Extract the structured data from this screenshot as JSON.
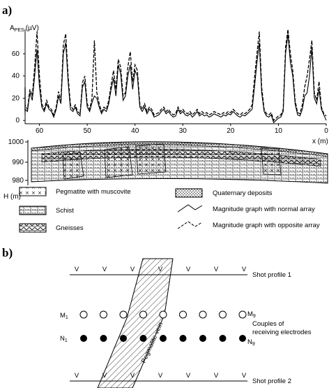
{
  "panel_a_label": "a)",
  "panel_b_label": "b)",
  "chart_data": {
    "type": "line",
    "ylabel_prefix": "A",
    "ylabel_sub": "PES",
    "ylabel_unit": "(µV)",
    "xlabel": "x (m)",
    "xlim": [
      63,
      0
    ],
    "ylim": [
      -3,
      82
    ],
    "y_ticks": [
      0,
      20,
      40,
      60
    ],
    "x_ticks": [
      60,
      50,
      40,
      30,
      20,
      10,
      0
    ],
    "series": [
      {
        "name": "Magnitude graph with normal array",
        "x": [
          65,
          64.5,
          64,
          63.5,
          63,
          62.5,
          62,
          61.5,
          61,
          60.5,
          60,
          59.5,
          59,
          58.5,
          58,
          57.5,
          57,
          56.5,
          56,
          55.5,
          55,
          54.5,
          54,
          53.5,
          53,
          52.5,
          52,
          51.5,
          51,
          50.5,
          50,
          49.5,
          49,
          48.5,
          48,
          47.5,
          47,
          46.5,
          46,
          45.5,
          45,
          44.5,
          44,
          43.5,
          43,
          42.5,
          42,
          41.5,
          41,
          40.5,
          40,
          39.5,
          39,
          38.5,
          38,
          37.5,
          37,
          36.5,
          36,
          35.5,
          35,
          34.5,
          34,
          33.5,
          33,
          32.5,
          32,
          31.5,
          31,
          30.5,
          30,
          29.5,
          29,
          28.5,
          28,
          27.5,
          27,
          26.5,
          26,
          25.5,
          25,
          24.5,
          24,
          23.5,
          23,
          22.5,
          22,
          21.5,
          21,
          20.5,
          20,
          19.5,
          19,
          18.5,
          18,
          17.5,
          17,
          16.5,
          16,
          15.5,
          15,
          14.5,
          14,
          13.5,
          13,
          12.5,
          12,
          11.5,
          11,
          10.5,
          10,
          9.5,
          9,
          8.5,
          8,
          7.5,
          7,
          6.5,
          6,
          5.5,
          5,
          4.5,
          4,
          3.5,
          3,
          2.5,
          2,
          1.5,
          1,
          0.5,
          0
        ],
        "values": [
          5,
          12,
          28,
          6,
          10,
          8,
          25,
          18,
          40,
          64,
          30,
          12,
          8,
          15,
          10,
          8,
          3,
          10,
          22,
          15,
          60,
          70,
          35,
          10,
          8,
          12,
          6,
          4,
          30,
          35,
          12,
          8,
          16,
          22,
          20,
          12,
          6,
          10,
          8,
          15,
          28,
          38,
          22,
          50,
          42,
          18,
          22,
          40,
          50,
          28,
          45,
          40,
          12,
          8,
          12,
          6,
          10,
          8,
          3,
          4,
          5,
          8,
          10,
          6,
          8,
          5,
          3,
          4,
          10,
          6,
          8,
          5,
          4,
          6,
          3,
          5,
          8,
          4,
          6,
          4,
          5,
          3,
          4,
          6,
          5,
          4,
          3,
          5,
          4,
          6,
          5,
          8,
          6,
          4,
          3,
          5,
          4,
          6,
          8,
          10,
          30,
          52,
          70,
          25,
          8,
          4,
          3,
          5,
          -2,
          0,
          2,
          3,
          8,
          60,
          78,
          52,
          40,
          15,
          5,
          4,
          10,
          22,
          25,
          40,
          66,
          20,
          15,
          28,
          10,
          5,
          0
        ]
      },
      {
        "name": "Magnitude graph with opposite array",
        "x": [
          65,
          64.5,
          64,
          63.5,
          63,
          62.5,
          62,
          61.5,
          61,
          60.5,
          60,
          59.5,
          59,
          58.5,
          58,
          57.5,
          57,
          56.5,
          56,
          55.5,
          55,
          54.5,
          54,
          53.5,
          53,
          52.5,
          52,
          51.5,
          51,
          50.5,
          50,
          49.5,
          49,
          48.5,
          48,
          47.5,
          47,
          46.5,
          46,
          45.5,
          45,
          44.5,
          44,
          43.5,
          43,
          42.5,
          42,
          41.5,
          41,
          40.5,
          40,
          39.5,
          39,
          38.5,
          38,
          37.5,
          37,
          36.5,
          36,
          35.5,
          35,
          34.5,
          34,
          33.5,
          33,
          32.5,
          32,
          31.5,
          31,
          30.5,
          30,
          29.5,
          29,
          28.5,
          28,
          27.5,
          27,
          26.5,
          26,
          25.5,
          25,
          24.5,
          24,
          23.5,
          23,
          22.5,
          22,
          21.5,
          21,
          20.5,
          20,
          19.5,
          19,
          18.5,
          18,
          17.5,
          17,
          16.5,
          16,
          15.5,
          15,
          14.5,
          14,
          13.5,
          13,
          12.5,
          12,
          11.5,
          11,
          10.5,
          10,
          9.5,
          9,
          8.5,
          8,
          7.5,
          7,
          6.5,
          6,
          5.5,
          5,
          4.5,
          4,
          3.5,
          3,
          2.5,
          2,
          1.5,
          1,
          0.5,
          0
        ],
        "values": [
          8,
          15,
          30,
          10,
          14,
          10,
          28,
          22,
          48,
          80,
          40,
          15,
          10,
          18,
          12,
          10,
          5,
          12,
          26,
          18,
          68,
          78,
          40,
          14,
          10,
          14,
          8,
          6,
          34,
          40,
          15,
          10,
          20,
          72,
          25,
          15,
          8,
          12,
          10,
          18,
          32,
          45,
          28,
          55,
          48,
          22,
          25,
          48,
          62,
          35,
          50,
          45,
          15,
          10,
          15,
          8,
          12,
          10,
          5,
          6,
          7,
          10,
          12,
          8,
          10,
          7,
          5,
          6,
          12,
          8,
          10,
          7,
          6,
          8,
          5,
          7,
          10,
          6,
          8,
          6,
          7,
          5,
          6,
          8,
          7,
          6,
          5,
          7,
          6,
          8,
          7,
          10,
          8,
          6,
          5,
          7,
          6,
          8,
          10,
          14,
          38,
          60,
          80,
          30,
          10,
          6,
          5,
          7,
          0,
          2,
          4,
          5,
          10,
          66,
          82,
          60,
          45,
          18,
          7,
          6,
          14,
          30,
          40,
          55,
          72,
          25,
          18,
          35,
          12,
          6,
          4
        ]
      }
    ]
  },
  "section": {
    "y_ticks": [
      1000,
      990,
      980
    ],
    "ylabel": "H (m)"
  },
  "legend": {
    "pegmatite": "Pegmatite with muscovite",
    "schist": "Schist",
    "gneisses": "Gneisses",
    "quaternary": "Quaternary deposits",
    "normal": "Magnitude graph with normal array",
    "opposite": "Magnitude graph with opposite array"
  },
  "diagram_b": {
    "shot_profile_1": "Shot profile 1",
    "shot_profile_2": "Shot profile 2",
    "v_mark": "V",
    "m1_base": "M",
    "m1_sub": "1",
    "m9_base": "M",
    "m9_sub": "9",
    "n1_base": "N",
    "n1_sub": "1",
    "n9_base": "N",
    "n9_sub": "9",
    "receiving_line1": "Couples of",
    "receiving_line2": "receiving electrodes",
    "vein_label": "Pegmatite vein"
  }
}
